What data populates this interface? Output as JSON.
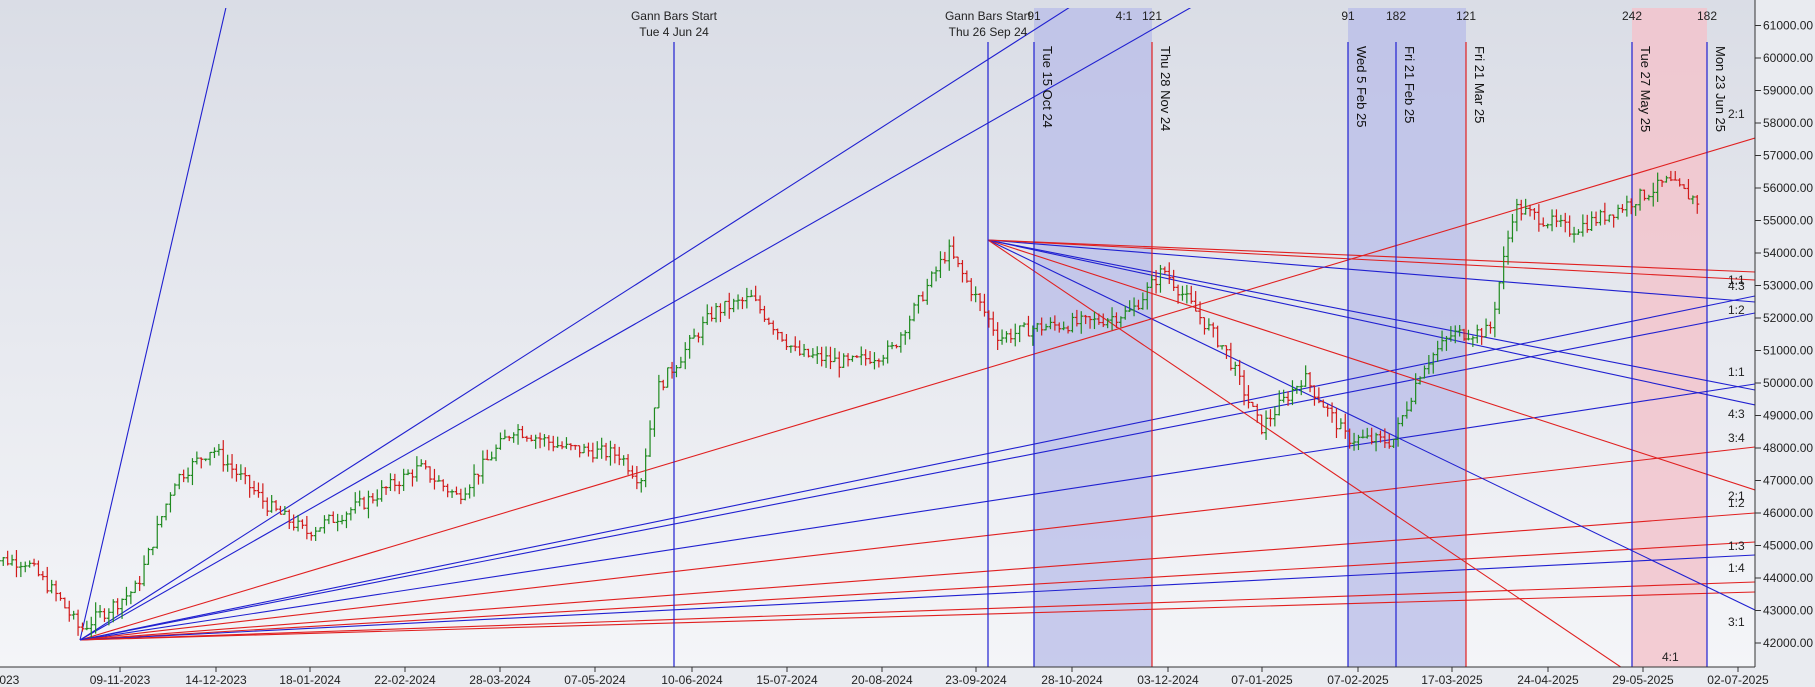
{
  "chart_data": {
    "type": "bar",
    "title": "",
    "xlabel": "",
    "ylabel": "",
    "ylim": [
      41500,
      62000
    ],
    "y_ticks": [
      "42000.00",
      "43000.00",
      "44000.00",
      "45000.00",
      "46000.00",
      "47000.00",
      "48000.00",
      "49000.00",
      "50000.00",
      "51000.00",
      "52000.00",
      "53000.00",
      "54000.00",
      "55000.00",
      "56000.00",
      "57000.00",
      "58000.00",
      "59000.00",
      "60000.00",
      "61000.00"
    ],
    "x_tick_labels": [
      "5-10-2023",
      "09-11-2023",
      "14-12-2023",
      "18-01-2024",
      "22-02-2024",
      "28-03-2024",
      "07-05-2024",
      "10-06-2024",
      "15-07-2024",
      "20-08-2024",
      "23-09-2024",
      "28-10-2024",
      "03-12-2024",
      "07-01-2025",
      "07-02-2025",
      "17-03-2025",
      "24-04-2025",
      "29-05-2025",
      "02-07-2025"
    ],
    "top_labels": [
      {
        "line1": "Gann Bars Start",
        "line2": "Tue 4 Jun 24"
      },
      {
        "line1": "Gann Bars Start",
        "line2": "Thu 26 Sep 24"
      }
    ],
    "top_numbers": [
      "91",
      "4:1",
      "121",
      "91",
      "182",
      "121",
      "242",
      "182"
    ],
    "vertical_labels": [
      "Tue 15 Oct 24",
      "Thu 28 Nov 24",
      "Wed 5 Feb 25",
      "Fri 21 Feb 25",
      "Fri 21 Mar 25",
      "Tue 27 May 25",
      "Mon 23 Jun 25"
    ],
    "fan_ratios": [
      "2:1",
      "1:1",
      "4:3",
      "1:2",
      "1:1",
      "4:3",
      "3:4",
      "2:1",
      "1:2",
      "1:3",
      "1:4",
      "3:1",
      "4:1"
    ],
    "fans": [
      {
        "name": "low anchor",
        "origin": [
          "2023-11-09",
          42200
        ],
        "color": "mixed"
      },
      {
        "name": "high anchor",
        "origin": [
          "2024-09-26",
          54500
        ],
        "color": "mixed"
      }
    ],
    "ohlc_summary": [
      [
        "2023-10-05",
        44600
      ],
      [
        "2023-10-20",
        44500
      ],
      [
        "2023-11-01",
        43400
      ],
      [
        "2023-11-09",
        42400
      ],
      [
        "2023-11-30",
        43700
      ],
      [
        "2023-12-14",
        47000
      ],
      [
        "2023-12-28",
        48000
      ],
      [
        "2024-01-18",
        46200
      ],
      [
        "2024-02-01",
        45400
      ],
      [
        "2024-02-22",
        46300
      ],
      [
        "2024-03-14",
        47400
      ],
      [
        "2024-03-28",
        46500
      ],
      [
        "2024-04-18",
        48600
      ],
      [
        "2024-05-07",
        48000
      ],
      [
        "2024-05-27",
        47800
      ],
      [
        "2024-06-04",
        47000
      ],
      [
        "2024-06-10",
        49800
      ],
      [
        "2024-07-01",
        52200
      ],
      [
        "2024-07-15",
        52600
      ],
      [
        "2024-08-01",
        50900
      ],
      [
        "2024-08-20",
        50600
      ],
      [
        "2024-09-05",
        51000
      ],
      [
        "2024-09-26",
        54100
      ],
      [
        "2024-10-15",
        51400
      ],
      [
        "2024-10-28",
        51700
      ],
      [
        "2024-11-20",
        51900
      ],
      [
        "2024-12-03",
        52200
      ],
      [
        "2024-12-15",
        53500
      ],
      [
        "2025-01-07",
        51000
      ],
      [
        "2025-01-20",
        48600
      ],
      [
        "2025-02-05",
        50200
      ],
      [
        "2025-02-21",
        48300
      ],
      [
        "2025-03-10",
        48200
      ],
      [
        "2025-03-21",
        50500
      ],
      [
        "2025-04-01",
        51500
      ],
      [
        "2025-04-15",
        51600
      ],
      [
        "2025-04-24",
        55400
      ],
      [
        "2025-05-15",
        54700
      ],
      [
        "2025-05-29",
        55200
      ],
      [
        "2025-06-20",
        56200
      ],
      [
        "2025-07-01",
        55600
      ]
    ],
    "colors": {
      "up": "#1f8a1f",
      "down": "#d11a1a",
      "blue_line": "#2020d0",
      "red_line": "#e02020",
      "blue_zone": "#b8bce8",
      "red_zone": "#f2c4cc"
    }
  }
}
